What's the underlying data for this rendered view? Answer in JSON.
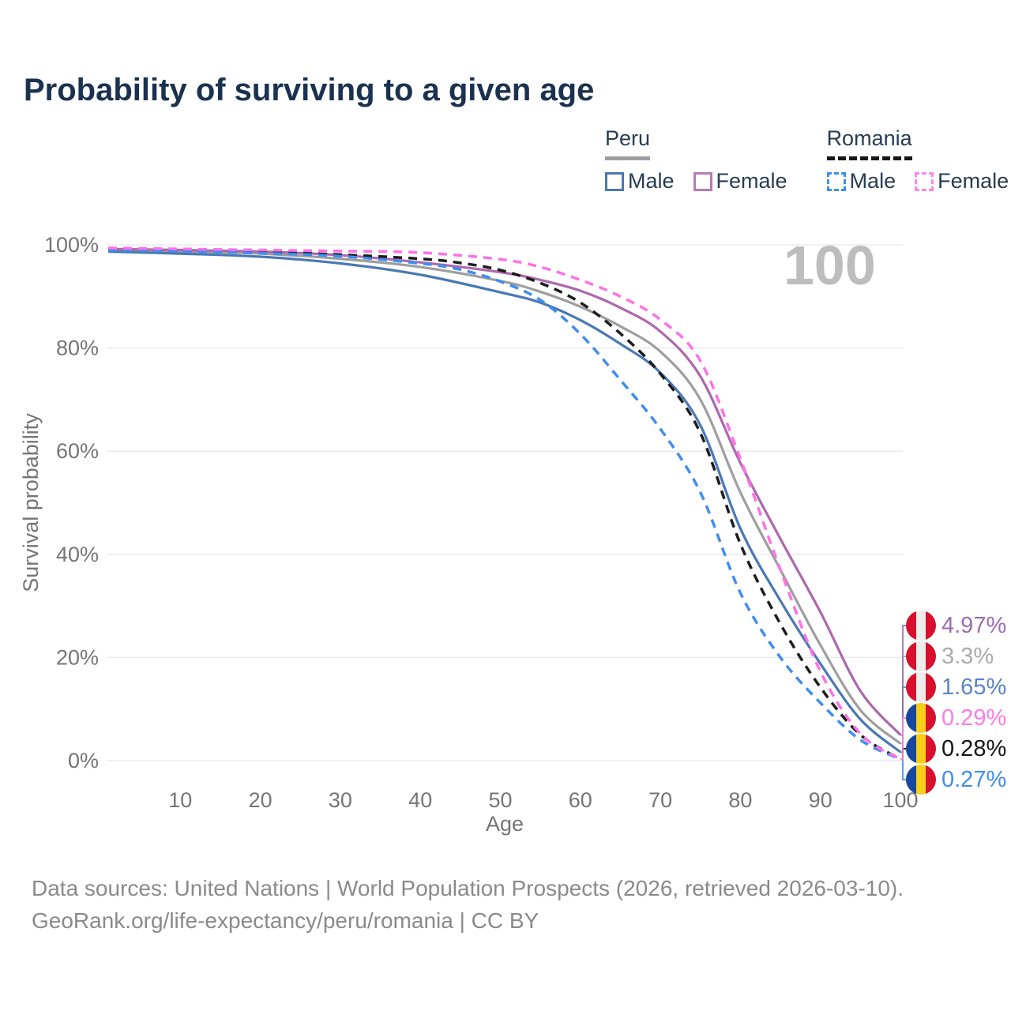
{
  "title": "Probability of surviving to a given age",
  "watermark": "100",
  "legend": {
    "groups": [
      {
        "name": "Peru",
        "line_style": "solid",
        "underline_color": "#9e9e9e",
        "items": [
          {
            "label": "Male",
            "color": "#4a78b5"
          },
          {
            "label": "Female",
            "color": "#b87ab8"
          }
        ]
      },
      {
        "name": "Romania",
        "line_style": "dashed",
        "underline_color": "#161616",
        "items": [
          {
            "label": "Male",
            "color": "#3f8df2"
          },
          {
            "label": "Female",
            "color": "#ff85ea"
          }
        ]
      }
    ]
  },
  "chart_data": {
    "type": "line",
    "title": "Probability of surviving to a given age",
    "xlabel": "Age",
    "ylabel": "Survival probability",
    "xlim": [
      0,
      100
    ],
    "ylim": [
      0,
      100
    ],
    "x_ticks": [
      10,
      20,
      30,
      40,
      50,
      60,
      70,
      80,
      90,
      100
    ],
    "y_ticks": [
      0,
      20,
      40,
      60,
      80,
      100
    ],
    "y_tick_suffix": "%",
    "grid": true,
    "grid_color": "#e8e8e8",
    "axis_text_color": "#757575",
    "annotation": "100",
    "series": [
      {
        "name": "Peru (both sexes)",
        "country": "Peru",
        "sex": "Both",
        "color": "#9e9e9e",
        "dash": "solid",
        "end_label": "3.3%",
        "end_color": "#ababab",
        "flag": "peru",
        "row": 1,
        "points": [
          [
            1,
            99.0
          ],
          [
            10,
            98.7
          ],
          [
            20,
            98.3
          ],
          [
            30,
            97.3
          ],
          [
            40,
            95.7
          ],
          [
            50,
            93.0
          ],
          [
            55,
            90.9
          ],
          [
            60,
            88.0
          ],
          [
            65,
            84.2
          ],
          [
            70,
            79.3
          ],
          [
            75,
            70.0
          ],
          [
            80,
            52.0
          ],
          [
            85,
            37.0
          ],
          [
            90,
            22.4
          ],
          [
            95,
            9.8
          ],
          [
            100,
            3.3
          ]
        ]
      },
      {
        "name": "Peru Male",
        "country": "Peru",
        "sex": "Male",
        "color": "#4a78b5",
        "dash": "solid",
        "end_label": "1.65%",
        "end_color": "#5b84c4",
        "flag": "peru",
        "row": 2,
        "points": [
          [
            1,
            98.7
          ],
          [
            10,
            98.3
          ],
          [
            20,
            97.7
          ],
          [
            30,
            96.4
          ],
          [
            40,
            94.2
          ],
          [
            50,
            90.8
          ],
          [
            55,
            88.8
          ],
          [
            60,
            85.4
          ],
          [
            65,
            80.8
          ],
          [
            70,
            75.2
          ],
          [
            75,
            65.0
          ],
          [
            80,
            45.0
          ],
          [
            85,
            31.0
          ],
          [
            90,
            18.8
          ],
          [
            95,
            8.0
          ],
          [
            100,
            1.65
          ]
        ]
      },
      {
        "name": "Peru Female",
        "country": "Peru",
        "sex": "Female",
        "color": "#ad68ad",
        "dash": "solid",
        "end_label": "4.97%",
        "end_color": "#9c6bb5",
        "flag": "peru",
        "row": 0,
        "points": [
          [
            1,
            99.2
          ],
          [
            10,
            99.0
          ],
          [
            20,
            98.7
          ],
          [
            30,
            98.0
          ],
          [
            40,
            96.6
          ],
          [
            50,
            94.7
          ],
          [
            55,
            93.2
          ],
          [
            60,
            91.1
          ],
          [
            65,
            87.8
          ],
          [
            70,
            83.2
          ],
          [
            75,
            74.5
          ],
          [
            80,
            57.7
          ],
          [
            85,
            43.0
          ],
          [
            90,
            28.8
          ],
          [
            95,
            13.5
          ],
          [
            100,
            4.97
          ]
        ]
      },
      {
        "name": "Romania (both sexes)",
        "country": "Romania",
        "sex": "Both",
        "color": "#1c1c1c",
        "dash": "dashed",
        "end_label": "0.28%",
        "end_color": "#141414",
        "flag": "romania",
        "row": 4,
        "points": [
          [
            1,
            99.1
          ],
          [
            10,
            98.9
          ],
          [
            20,
            98.6
          ],
          [
            30,
            98.1
          ],
          [
            40,
            97.3
          ],
          [
            45,
            96.5
          ],
          [
            50,
            95.1
          ],
          [
            55,
            92.6
          ],
          [
            60,
            88.8
          ],
          [
            65,
            82.8
          ],
          [
            70,
            75.0
          ],
          [
            75,
            63.5
          ],
          [
            80,
            42.0
          ],
          [
            85,
            26.5
          ],
          [
            90,
            14.2
          ],
          [
            95,
            5.0
          ],
          [
            100,
            0.28
          ]
        ]
      },
      {
        "name": "Romania Male",
        "country": "Romania",
        "sex": "Male",
        "color": "#3f8df2",
        "dash": "dashed",
        "end_label": "0.27%",
        "end_color": "#3f8df2",
        "flag": "romania",
        "row": 5,
        "points": [
          [
            1,
            99.0
          ],
          [
            10,
            98.8
          ],
          [
            20,
            98.4
          ],
          [
            30,
            97.8
          ],
          [
            40,
            96.4
          ],
          [
            45,
            95.2
          ],
          [
            50,
            92.9
          ],
          [
            55,
            89.3
          ],
          [
            60,
            82.7
          ],
          [
            65,
            73.8
          ],
          [
            70,
            64.3
          ],
          [
            75,
            52.0
          ],
          [
            80,
            32.5
          ],
          [
            85,
            20.0
          ],
          [
            90,
            11.2
          ],
          [
            95,
            4.0
          ],
          [
            100,
            0.27
          ]
        ]
      },
      {
        "name": "Romania Female",
        "country": "Romania",
        "sex": "Female",
        "color": "#ff70e8",
        "dash": "dashed",
        "end_label": "0.29%",
        "end_color": "#ff7be8",
        "flag": "romania",
        "row": 3,
        "points": [
          [
            1,
            99.4
          ],
          [
            10,
            99.2
          ],
          [
            20,
            99.0
          ],
          [
            30,
            98.8
          ],
          [
            40,
            98.5
          ],
          [
            50,
            97.2
          ],
          [
            55,
            95.7
          ],
          [
            60,
            93.2
          ],
          [
            65,
            90.0
          ],
          [
            70,
            85.5
          ],
          [
            75,
            77.5
          ],
          [
            80,
            58.5
          ],
          [
            85,
            37.0
          ],
          [
            90,
            17.3
          ],
          [
            95,
            5.2
          ],
          [
            100,
            0.29
          ]
        ]
      }
    ]
  },
  "footer": {
    "line1": "Data sources: United Nations | World Population Prospects (2026, retrieved 2026-03-10).",
    "line2": "GeoRank.org/life-expectancy/peru/romania | CC BY"
  }
}
